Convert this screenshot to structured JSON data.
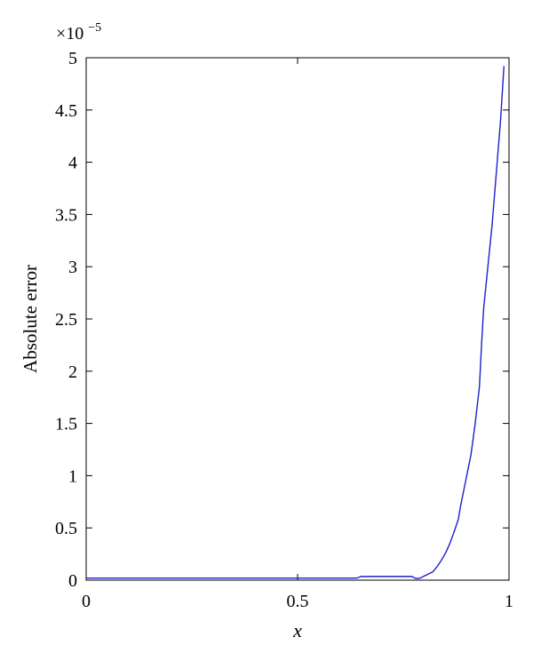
{
  "chart_data": {
    "type": "line",
    "xlabel": "x",
    "ylabel": "Absolute error",
    "scale_multiplier": "×10",
    "scale_exponent": "−5",
    "xlim": [
      0,
      1
    ],
    "ylim": [
      0,
      5
    ],
    "x_ticks": [
      0,
      0.5,
      1
    ],
    "x_tick_labels": [
      "0",
      "0.5",
      "1"
    ],
    "y_ticks": [
      0,
      0.5,
      1,
      1.5,
      2,
      2.5,
      3,
      3.5,
      4,
      4.5,
      5
    ],
    "y_tick_labels": [
      "0",
      "0.5",
      "1",
      "1.5",
      "2",
      "2.5",
      "3",
      "3.5",
      "4",
      "4.5",
      "5"
    ],
    "grid": false,
    "legend": "none",
    "line_color": "#1f1fcc",
    "series": [
      {
        "x": [
          0,
          0.1,
          0.2,
          0.3,
          0.4,
          0.5,
          0.6,
          0.64,
          0.65,
          0.7,
          0.75,
          0.77,
          0.78,
          0.79,
          0.8,
          0.82,
          0.83,
          0.84,
          0.85,
          0.86,
          0.87,
          0.88,
          0.885,
          0.89,
          0.9,
          0.91,
          0.92,
          0.93,
          0.935,
          0.94,
          0.95,
          0.96,
          0.97,
          0.98,
          0.988
        ],
        "y": [
          0.02,
          0.02,
          0.02,
          0.02,
          0.02,
          0.02,
          0.02,
          0.02,
          0.035,
          0.035,
          0.035,
          0.035,
          0.015,
          0.02,
          0.04,
          0.08,
          0.13,
          0.19,
          0.26,
          0.35,
          0.46,
          0.58,
          0.7,
          0.8,
          1.0,
          1.2,
          1.5,
          1.85,
          2.25,
          2.6,
          3.0,
          3.4,
          3.9,
          4.4,
          4.92
        ]
      }
    ]
  }
}
